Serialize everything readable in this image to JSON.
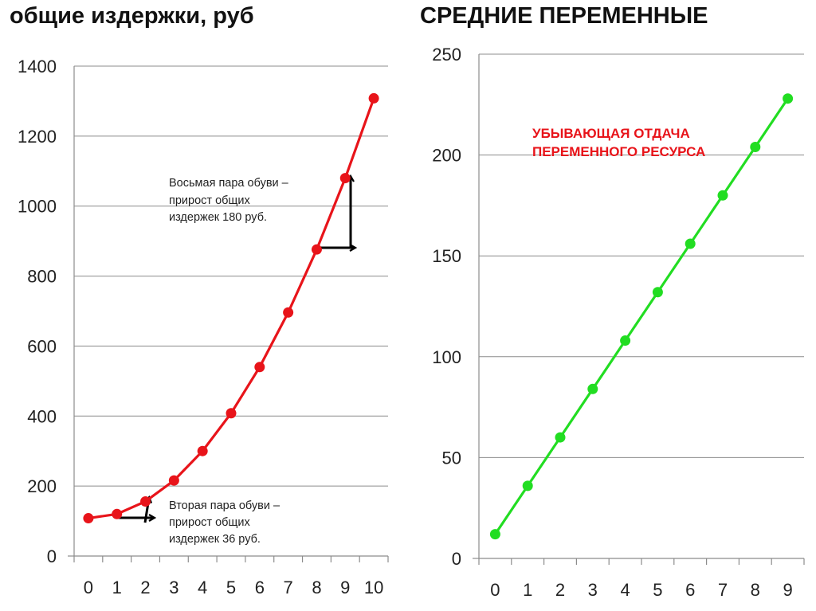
{
  "chart_data": [
    {
      "type": "line",
      "title": "общие издержки, руб",
      "x": [
        "0",
        "1",
        "2",
        "3",
        "4",
        "5",
        "6",
        "7",
        "8",
        "9",
        "10"
      ],
      "series": [
        {
          "values": [
            108,
            120,
            156,
            216,
            300,
            408,
            540,
            696,
            876,
            1080,
            1308
          ]
        }
      ],
      "ylim": [
        0,
        1400
      ],
      "yticks": [
        "0",
        "200",
        "400",
        "600",
        "800",
        "1000",
        "1200",
        "1400"
      ],
      "grid": true,
      "color": "#e8141a",
      "annotations": [
        {
          "lines": [
            "Восьмая пара обуви –",
            "прирост общих",
            "издержек 180 руб."
          ]
        },
        {
          "lines": [
            "Вторая пара обуви –",
            "прирост общих",
            "издержек 36 руб."
          ]
        }
      ]
    },
    {
      "type": "line",
      "title": "СРЕДНИЕ ПЕРЕМЕННЫЕ",
      "x": [
        "0",
        "1",
        "2",
        "3",
        "4",
        "5",
        "6",
        "7",
        "8",
        "9"
      ],
      "series": [
        {
          "values": [
            12,
            36,
            60,
            84,
            108,
            132,
            156,
            180,
            204,
            228
          ]
        }
      ],
      "ylim": [
        0,
        250
      ],
      "yticks": [
        "0",
        "50",
        "100",
        "150",
        "200",
        "250"
      ],
      "grid": true,
      "color": "#22dd22",
      "annotations": [
        {
          "lines": [
            "УБЫВАЮЩАЯ ОТДАЧА",
            "ПЕРЕМЕННОГО РЕСУРСА"
          ],
          "color": "#e8141a"
        }
      ]
    }
  ]
}
